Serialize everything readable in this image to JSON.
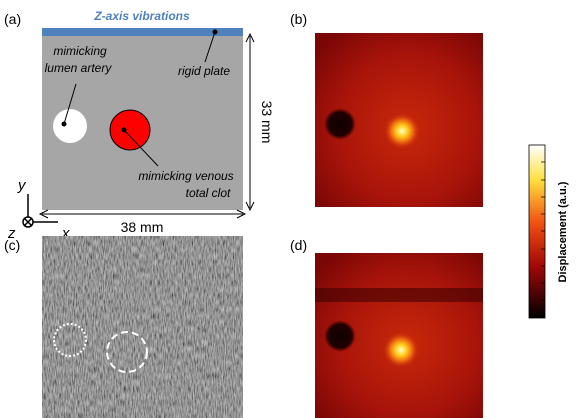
{
  "panel_labels": [
    "(a)",
    "(b)",
    "(c)",
    "(d)"
  ],
  "schematic": {
    "top_label": "Z-axis vibrations",
    "artery_label": [
      "mimicking",
      "lumen artery"
    ],
    "plate_label": "rigid plate",
    "clot_label": [
      "mimicking venous",
      "total clot"
    ],
    "height_label": "33 mm",
    "width_label": "38 mm",
    "axes": {
      "y": "y",
      "z": "z",
      "x": "x"
    }
  },
  "colorbar": {
    "label": "Displacement (a.u.)"
  }
}
